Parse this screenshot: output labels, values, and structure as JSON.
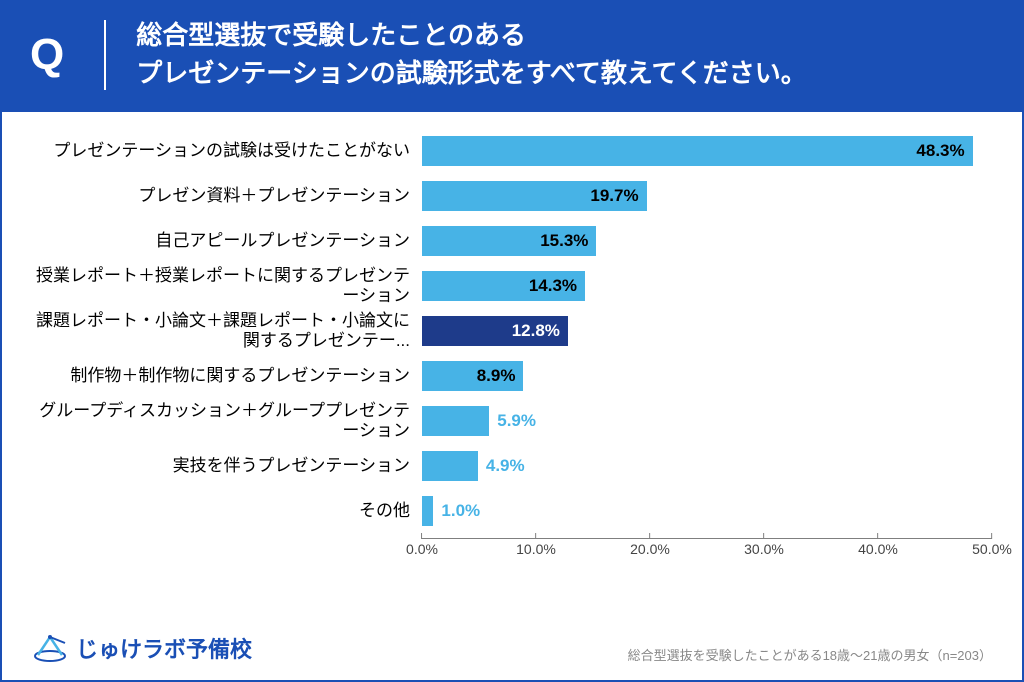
{
  "header": {
    "q_mark": "Q",
    "question_line1": "総合型選抜で受験したことのある",
    "question_line2": "プレゼンテーションの試験形式をすべて教えてください。"
  },
  "chart": {
    "type": "bar",
    "orientation": "horizontal",
    "x_max_pct": 50.0,
    "x_tick_step": 10.0,
    "x_ticks": [
      "0.0%",
      "10.0%",
      "20.0%",
      "30.0%",
      "40.0%",
      "50.0%"
    ],
    "axis_color": "#7f7f7f",
    "label_fontsize": 17,
    "value_fontsize": 17,
    "colors": {
      "light": "#47b3e6",
      "dark": "#1e3b8a",
      "value_text_dark": "#000000",
      "value_text_light": "#ffffff",
      "value_outside_text": "#47b3e6"
    },
    "rows": [
      {
        "label": "プレゼンテーションの試験は受けたことがない",
        "value": 48.3,
        "display": "48.3%",
        "color": "light",
        "value_placement": "inside",
        "value_color": "dark"
      },
      {
        "label": "プレゼン資料＋プレゼンテーション",
        "value": 19.7,
        "display": "19.7%",
        "color": "light",
        "value_placement": "inside",
        "value_color": "dark"
      },
      {
        "label": "自己アピールプレゼンテーション",
        "value": 15.3,
        "display": "15.3%",
        "color": "light",
        "value_placement": "inside",
        "value_color": "dark"
      },
      {
        "label": "授業レポート＋授業レポートに関するプレゼンテーション",
        "value": 14.3,
        "display": "14.3%",
        "color": "light",
        "value_placement": "inside",
        "value_color": "dark"
      },
      {
        "label": "課題レポート・小論文＋課題レポート・小論文に関するプレゼンテー...",
        "value": 12.8,
        "display": "12.8%",
        "color": "dark",
        "value_placement": "inside",
        "value_color": "light"
      },
      {
        "label": "制作物＋制作物に関するプレゼンテーション",
        "value": 8.9,
        "display": "8.9%",
        "color": "light",
        "value_placement": "inside",
        "value_color": "dark"
      },
      {
        "label": "グループディスカッション＋グループプレゼンテーション",
        "value": 5.9,
        "display": "5.9%",
        "color": "light",
        "value_placement": "outside",
        "value_color": "outside"
      },
      {
        "label": "実技を伴うプレゼンテーション",
        "value": 4.9,
        "display": "4.9%",
        "color": "light",
        "value_placement": "outside",
        "value_color": "outside"
      },
      {
        "label": "その他",
        "value": 1.0,
        "display": "1.0%",
        "color": "light",
        "value_placement": "outside",
        "value_color": "outside"
      }
    ]
  },
  "footer": {
    "logo_text": "じゅけラボ予備校",
    "note": "総合型選抜を受験したことがある18歳〜21歳の男女（n=203）"
  },
  "palette": {
    "header_bg": "#1a4fb5",
    "header_fg": "#ffffff",
    "border": "#1a4fb5",
    "note_color": "#888888"
  }
}
